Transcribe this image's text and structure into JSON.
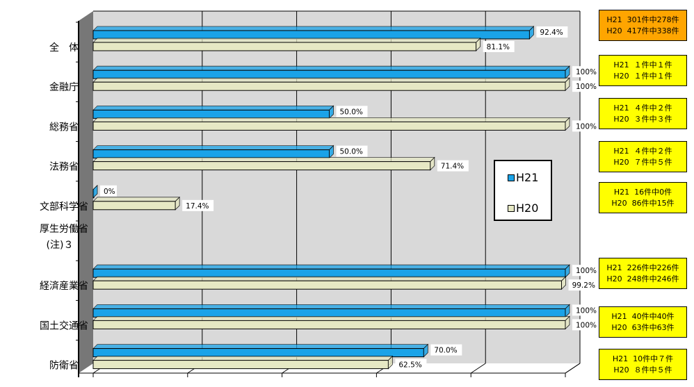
{
  "colors": {
    "h21": "#1aa3e8",
    "h20": "#e6e8c4",
    "wall": "#d9d9d9",
    "floor": "#777777",
    "info_highlight": "#ffa500",
    "info_default": "#ffff00"
  },
  "chart_data": {
    "type": "bar",
    "orientation": "horizontal",
    "categories": [
      "全　体",
      "金融庁",
      "総務省",
      "法務省",
      "文部科学省",
      "厚生労働省",
      "経済産業省",
      "国土交通省",
      "防衛省"
    ],
    "category_note": "(注)３",
    "series": [
      {
        "name": "H21",
        "values": [
          92.4,
          100,
          50.0,
          50.0,
          0,
          null,
          100,
          100,
          70.0
        ],
        "labels": [
          "92.4%",
          "100%",
          "50.0%",
          "50.0%",
          "0%",
          "",
          "100%",
          "100%",
          "70.0%"
        ]
      },
      {
        "name": "H20",
        "values": [
          81.1,
          100,
          100,
          71.4,
          17.4,
          null,
          99.2,
          100,
          62.5
        ],
        "labels": [
          "81.1%",
          "100%",
          "100%",
          "71.4%",
          "17.4%",
          "",
          "99.2%",
          "100%",
          "62.5%"
        ]
      }
    ],
    "xlim": [
      0,
      100
    ],
    "grid": true,
    "legend": "right"
  },
  "info_boxes": [
    {
      "line1": "H21  301件中278件",
      "line2": "H20  417件中338件",
      "highlight": true
    },
    {
      "line1": "H21  １件中１件",
      "line2": "H20  １件中１件",
      "highlight": false
    },
    {
      "line1": "H21  ４件中２件",
      "line2": "H20  ３件中３件",
      "highlight": false
    },
    {
      "line1": "H21  ４件中２件",
      "line2": "H20  ７件中５件",
      "highlight": false
    },
    {
      "line1": "H21  16件中0件",
      "line2": "H20  86件中15件",
      "highlight": false
    },
    null,
    {
      "line1": "H21  226件中226件",
      "line2": "H20  248件中246件",
      "highlight": false
    },
    {
      "line1": "H21  40件中40件",
      "line2": "H20  63件中63件",
      "highlight": false
    },
    {
      "line1": "H21  10件中７件",
      "line2": "H20  ８件中５件",
      "highlight": false
    }
  ]
}
